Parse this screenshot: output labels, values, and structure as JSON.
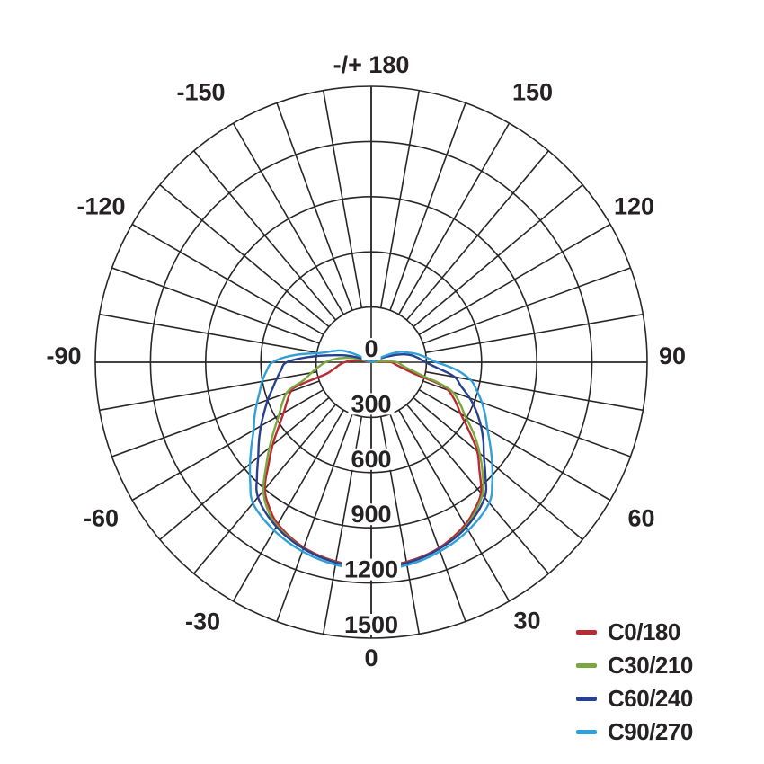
{
  "page": {
    "background": "#ffffff"
  },
  "chart_data": {
    "type": "line",
    "subtype": "polar-photometric-intensity-diagram",
    "title": "",
    "units_note": "luminous intensity in cd; angle 0 = nadir (bottom), +/-180 = top",
    "grid_color": "#2a2627",
    "label_color": "#262223",
    "radial_axis": {
      "min": 0,
      "max": 1500,
      "tick_step": 300,
      "tick_labels": [
        "0",
        "300",
        "600",
        "900",
        "1200",
        "1500"
      ]
    },
    "angular_axis": {
      "grid_step_deg": 10,
      "label_step_deg": 30,
      "labels": [
        {
          "angle_deg": 180,
          "label": "-/+ 180"
        },
        {
          "angle_deg": -150,
          "label": "-150"
        },
        {
          "angle_deg": -120,
          "label": "-120"
        },
        {
          "angle_deg": -90,
          "label": "-90"
        },
        {
          "angle_deg": -60,
          "label": "-60"
        },
        {
          "angle_deg": -30,
          "label": "-30"
        },
        {
          "angle_deg": 0,
          "label": "0"
        },
        {
          "angle_deg": 30,
          "label": "30"
        },
        {
          "angle_deg": 60,
          "label": "60"
        },
        {
          "angle_deg": 90,
          "label": "90"
        },
        {
          "angle_deg": 120,
          "label": "120"
        },
        {
          "angle_deg": 150,
          "label": "150"
        }
      ]
    },
    "series": [
      {
        "name": "C0/180",
        "color": "#b92b31",
        "points": [
          [
            -103,
            0
          ],
          [
            -100,
            40
          ],
          [
            -95,
            100
          ],
          [
            -90,
            144
          ],
          [
            -85,
            175
          ],
          [
            -80,
            205
          ],
          [
            -75,
            265
          ],
          [
            -72,
            430
          ],
          [
            -70,
            465
          ],
          [
            -65,
            505
          ],
          [
            -60,
            550
          ],
          [
            -55,
            615
          ],
          [
            -50,
            700
          ],
          [
            -45,
            790
          ],
          [
            -40,
            900
          ],
          [
            -35,
            965
          ],
          [
            -30,
            1015
          ],
          [
            -20,
            1072
          ],
          [
            -10,
            1100
          ],
          [
            0,
            1113
          ],
          [
            10,
            1102
          ],
          [
            20,
            1075
          ],
          [
            30,
            1020
          ],
          [
            35,
            978
          ],
          [
            40,
            928
          ],
          [
            45,
            832
          ],
          [
            50,
            752
          ],
          [
            55,
            648
          ],
          [
            60,
            562
          ],
          [
            65,
            505
          ],
          [
            70,
            445
          ],
          [
            72,
            400
          ],
          [
            75,
            245
          ],
          [
            80,
            168
          ],
          [
            85,
            132
          ],
          [
            90,
            109
          ],
          [
            95,
            50
          ],
          [
            100,
            14
          ],
          [
            103,
            0
          ]
        ]
      },
      {
        "name": "C30/210",
        "color": "#78a83e",
        "points": [
          [
            -108,
            0
          ],
          [
            -105,
            70
          ],
          [
            -100,
            138
          ],
          [
            -95,
            198
          ],
          [
            -90,
            249
          ],
          [
            -85,
            287
          ],
          [
            -80,
            330
          ],
          [
            -75,
            382
          ],
          [
            -72,
            455
          ],
          [
            -70,
            490
          ],
          [
            -65,
            535
          ],
          [
            -60,
            580
          ],
          [
            -55,
            645
          ],
          [
            -50,
            722
          ],
          [
            -45,
            810
          ],
          [
            -40,
            912
          ],
          [
            -35,
            980
          ],
          [
            -30,
            1025
          ],
          [
            -20,
            1078
          ],
          [
            -10,
            1105
          ],
          [
            0,
            1118
          ],
          [
            10,
            1108
          ],
          [
            20,
            1080
          ],
          [
            30,
            1030
          ],
          [
            40,
            940
          ],
          [
            45,
            856
          ],
          [
            50,
            770
          ],
          [
            55,
            682
          ],
          [
            60,
            592
          ],
          [
            65,
            532
          ],
          [
            70,
            470
          ],
          [
            73,
            382
          ],
          [
            75,
            295
          ],
          [
            80,
            206
          ],
          [
            85,
            165
          ],
          [
            90,
            140
          ],
          [
            95,
            70
          ],
          [
            100,
            24
          ],
          [
            105,
            0
          ]
        ]
      },
      {
        "name": "C60/240",
        "color": "#28418f",
        "points": [
          [
            -120,
            0
          ],
          [
            -115,
            32
          ],
          [
            -110,
            72
          ],
          [
            -105,
            142
          ],
          [
            -100,
            218
          ],
          [
            -95,
            335
          ],
          [
            -90,
            460
          ],
          [
            -85,
            492
          ],
          [
            -80,
            522
          ],
          [
            -75,
            556
          ],
          [
            -70,
            598
          ],
          [
            -65,
            642
          ],
          [
            -60,
            692
          ],
          [
            -55,
            745
          ],
          [
            -50,
            802
          ],
          [
            -45,
            878
          ],
          [
            -40,
            958
          ],
          [
            -30,
            1032
          ],
          [
            -20,
            1078
          ],
          [
            -10,
            1106
          ],
          [
            0,
            1114
          ],
          [
            10,
            1108
          ],
          [
            20,
            1080
          ],
          [
            30,
            1035
          ],
          [
            40,
            960
          ],
          [
            45,
            878
          ],
          [
            50,
            800
          ],
          [
            55,
            744
          ],
          [
            60,
            688
          ],
          [
            65,
            630
          ],
          [
            70,
            570
          ],
          [
            75,
            506
          ],
          [
            80,
            460
          ],
          [
            85,
            362
          ],
          [
            90,
            295
          ],
          [
            95,
            258
          ],
          [
            100,
            220
          ],
          [
            105,
            165
          ],
          [
            110,
            85
          ],
          [
            115,
            30
          ],
          [
            118,
            0
          ]
        ]
      },
      {
        "name": "C90/270",
        "color": "#319fd8",
        "points": [
          [
            -122,
            0
          ],
          [
            -117,
            85
          ],
          [
            -112,
            168
          ],
          [
            -106,
            218
          ],
          [
            -100,
            288
          ],
          [
            -95,
            428
          ],
          [
            -90,
            536
          ],
          [
            -85,
            572
          ],
          [
            -80,
            602
          ],
          [
            -75,
            628
          ],
          [
            -70,
            662
          ],
          [
            -65,
            700
          ],
          [
            -60,
            738
          ],
          [
            -55,
            795
          ],
          [
            -50,
            860
          ],
          [
            -45,
            930
          ],
          [
            -40,
            1000
          ],
          [
            -30,
            1056
          ],
          [
            -20,
            1094
          ],
          [
            -10,
            1118
          ],
          [
            0,
            1126
          ],
          [
            10,
            1120
          ],
          [
            20,
            1094
          ],
          [
            30,
            1055
          ],
          [
            40,
            998
          ],
          [
            45,
            930
          ],
          [
            50,
            858
          ],
          [
            55,
            790
          ],
          [
            60,
            730
          ],
          [
            65,
            684
          ],
          [
            70,
            640
          ],
          [
            75,
            594
          ],
          [
            80,
            548
          ],
          [
            85,
            462
          ],
          [
            90,
            355
          ],
          [
            95,
            300
          ],
          [
            100,
            254
          ],
          [
            105,
            204
          ],
          [
            110,
            164
          ],
          [
            115,
            80
          ],
          [
            120,
            0
          ]
        ]
      }
    ]
  }
}
